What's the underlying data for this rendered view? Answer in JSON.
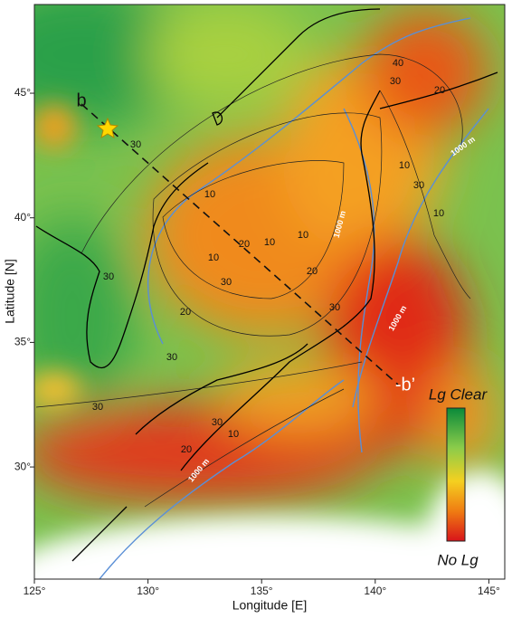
{
  "map": {
    "xlabel": "Longitude [E]",
    "ylabel": "Latitude [N]",
    "xlim": [
      125,
      145.7
    ],
    "ylim": [
      25.5,
      48.56
    ],
    "xticks": [
      {
        "value": 125,
        "label": "125°"
      },
      {
        "value": 130,
        "label": "130°"
      },
      {
        "value": 135,
        "label": "135°"
      },
      {
        "value": 140,
        "label": "140°"
      },
      {
        "value": 145,
        "label": "145°"
      }
    ],
    "yticks": [
      {
        "value": 30,
        "label": "30°"
      },
      {
        "value": 35,
        "label": "35°"
      },
      {
        "value": 40,
        "label": "40°"
      },
      {
        "value": 45,
        "label": "45°"
      }
    ],
    "profile": {
      "start_label": "b",
      "end_label": "-b’"
    },
    "colorbar": {
      "top_label": "Lg Clear",
      "bottom_label": "No Lg"
    },
    "contour_labels": [
      "30",
      "10",
      "20",
      "30",
      "10",
      "10",
      "10",
      "20",
      "30",
      "20",
      "30",
      "30",
      "30",
      "10",
      "20",
      "40",
      "30",
      "20",
      "10",
      "10",
      "30",
      "30"
    ],
    "depth_labels": [
      "1000 m",
      "1000 m",
      "1000 m",
      "1000 m"
    ]
  }
}
